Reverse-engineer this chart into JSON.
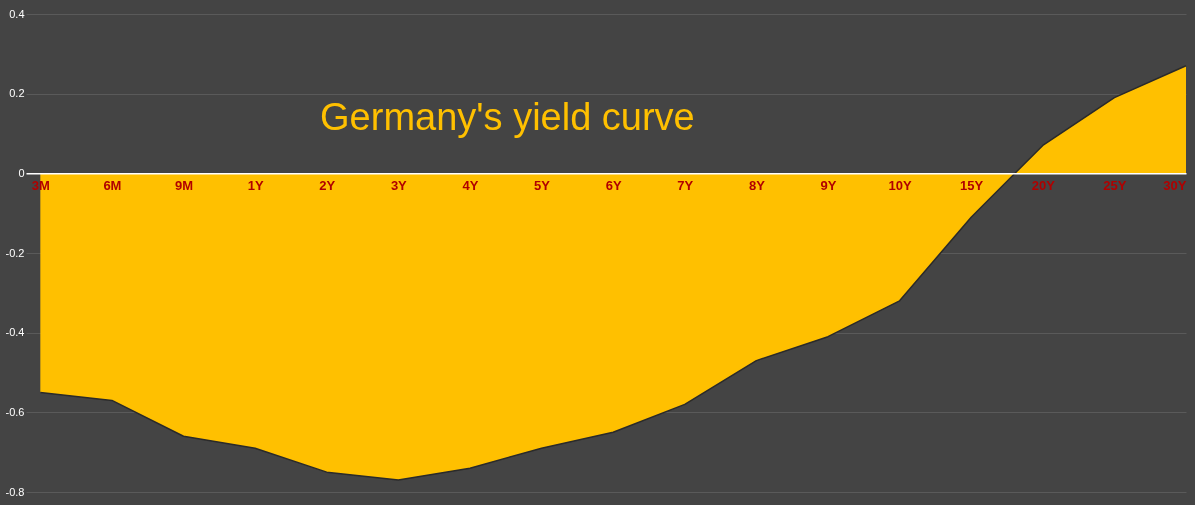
{
  "chart_data": {
    "type": "area",
    "title": "Germany's yield curve",
    "categories": [
      "3M",
      "6M",
      "9M",
      "1Y",
      "2Y",
      "3Y",
      "4Y",
      "5Y",
      "6Y",
      "7Y",
      "8Y",
      "9Y",
      "10Y",
      "15Y",
      "20Y",
      "25Y",
      "30Y"
    ],
    "series": [
      {
        "color": "#ffc000",
        "values": [
          -0.55,
          -0.57,
          -0.66,
          -0.69,
          -0.75,
          -0.77,
          -0.74,
          -0.69,
          -0.65,
          -0.58,
          -0.47,
          -0.41,
          -0.32,
          -0.11,
          0.07,
          0.19,
          0.27
        ]
      }
    ],
    "ylim": [
      -0.84,
      0.4
    ],
    "yticks": [
      -0.8,
      -0.6,
      -0.4,
      -0.2,
      0,
      0.2,
      0.4
    ],
    "grid": "y"
  }
}
